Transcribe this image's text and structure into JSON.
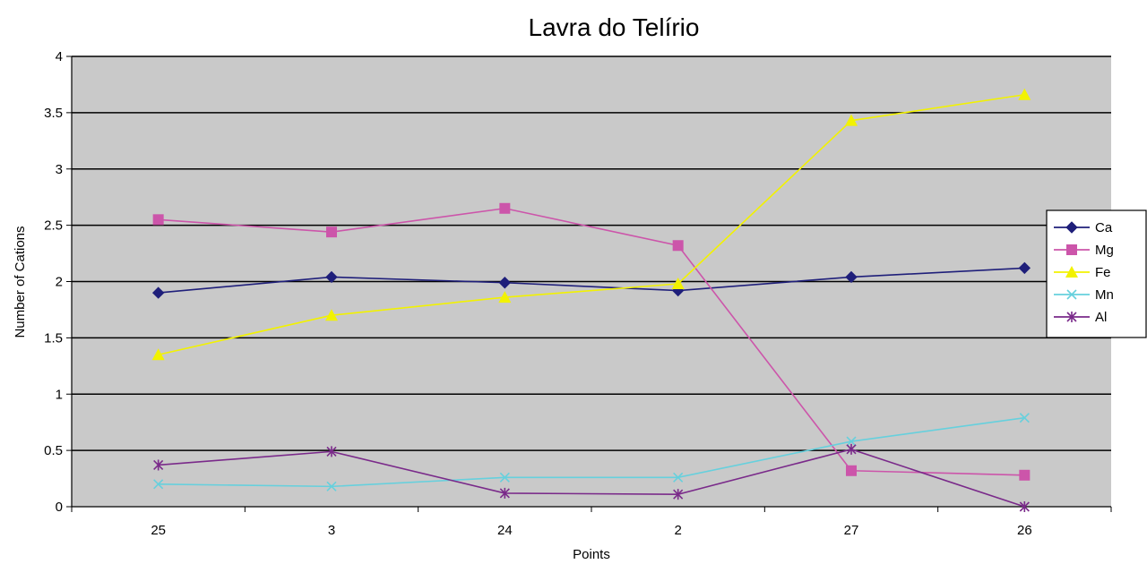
{
  "chart_data": {
    "type": "line",
    "title": "Lavra do Telírio",
    "xlabel": "Points",
    "ylabel": "Number of Cations",
    "categories": [
      "25",
      "3",
      "24",
      "2",
      "27",
      "26"
    ],
    "ylim": [
      0,
      4
    ],
    "yticks": [
      "0",
      "0.5",
      "1",
      "1.5",
      "2",
      "2.5",
      "3",
      "3.5",
      "4"
    ],
    "grid": "horizontal major gridlines",
    "legend_position": "right",
    "series": [
      {
        "name": "Ca",
        "values": [
          1.9,
          2.04,
          1.99,
          1.92,
          2.04,
          2.12
        ],
        "color": "#1f1f7a",
        "marker": "diamond"
      },
      {
        "name": "Mg",
        "values": [
          2.55,
          2.44,
          2.65,
          2.32,
          0.32,
          0.28
        ],
        "color": "#cc55aa",
        "marker": "square"
      },
      {
        "name": "Fe",
        "values": [
          1.35,
          1.7,
          1.86,
          1.98,
          3.43,
          3.66
        ],
        "color": "#f2f200",
        "marker": "triangle"
      },
      {
        "name": "Mn",
        "values": [
          0.2,
          0.18,
          0.26,
          0.26,
          0.58,
          0.79
        ],
        "color": "#66d0dd",
        "marker": "x"
      },
      {
        "name": "Al",
        "values": [
          0.37,
          0.49,
          0.12,
          0.11,
          0.51,
          0.0
        ],
        "color": "#7a2a8a",
        "marker": "star"
      }
    ]
  }
}
